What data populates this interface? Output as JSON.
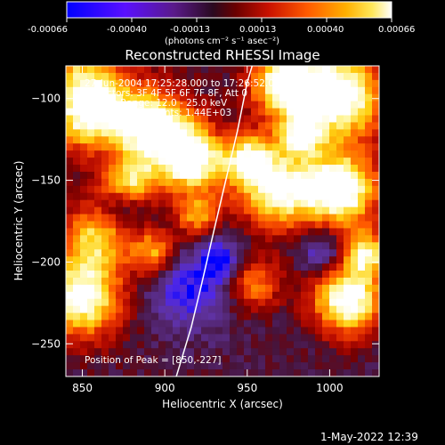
{
  "colorbar": {
    "ticks": [
      "-0.00066",
      "-0.00040",
      "-0.00013",
      "0.00013",
      "0.00040",
      "0.00066"
    ],
    "unit_label": "(photons cm⁻² s⁻¹ asec⁻²)",
    "colors": [
      "#0000ff",
      "#7f00ff",
      "#3a0a55",
      "#a00000",
      "#ff2a00",
      "#ff8c00",
      "#ffd000",
      "#ffffff"
    ]
  },
  "chart_data": {
    "type": "heatmap",
    "title": "Reconstructed RHESSI Image",
    "xlabel": "Heliocentric X (arcsec)",
    "ylabel": "Heliocentric Y (arcsec)",
    "xlim": [
      840,
      1030
    ],
    "ylim": [
      -270,
      -80
    ],
    "xticks": [
      850,
      900,
      950,
      1000
    ],
    "xtick_labels": [
      "850",
      "900",
      "950",
      "1000"
    ],
    "yticks": [
      -250,
      -200,
      -150,
      -100
    ],
    "ytick_labels": [
      "−250",
      "−200",
      "−150",
      "−100"
    ],
    "peak": [
      850,
      -227
    ],
    "annotations": {
      "line1": "27-Jun-2004 17:25:28.000 to 17:26:52.000",
      "line2": "Detectors: 3F 4F 5F 6F 7F 8F, Att 0",
      "line3": "Energy Range: 12.0 - 25.0 keV",
      "line4": "Clean    Total counts: 1.44E+03",
      "peak_label": "Position of Peak = [850,-227]"
    },
    "limb_curve": [
      [
        907,
        -270
      ],
      [
        916,
        -240
      ],
      [
        922,
        -215
      ],
      [
        930,
        -180
      ],
      [
        937,
        -150
      ],
      [
        944,
        -120
      ],
      [
        950,
        -90
      ],
      [
        953,
        -80
      ]
    ]
  },
  "timestamp": "1-May-2022 12:39"
}
